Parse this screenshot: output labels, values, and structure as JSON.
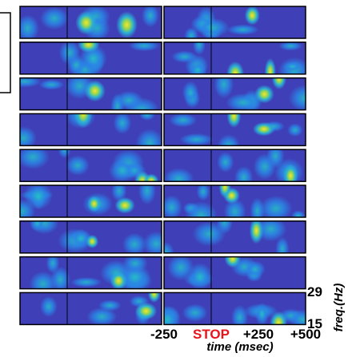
{
  "chart_data": {
    "type": "spectrogram-grid",
    "x_label": "time (msec)",
    "y_label": "freq.(Hz)",
    "xlim": [
      -250,
      500
    ],
    "xticks": [
      -250,
      {
        "value": 0,
        "label": "STOP"
      },
      {
        "value": 250,
        "label": "+250"
      },
      {
        "value": 500,
        "label": "+500"
      }
    ],
    "ylim": [
      15,
      29
    ],
    "yticks": [
      15,
      29
    ],
    "stop_color": "#e8141c"
  }
}
